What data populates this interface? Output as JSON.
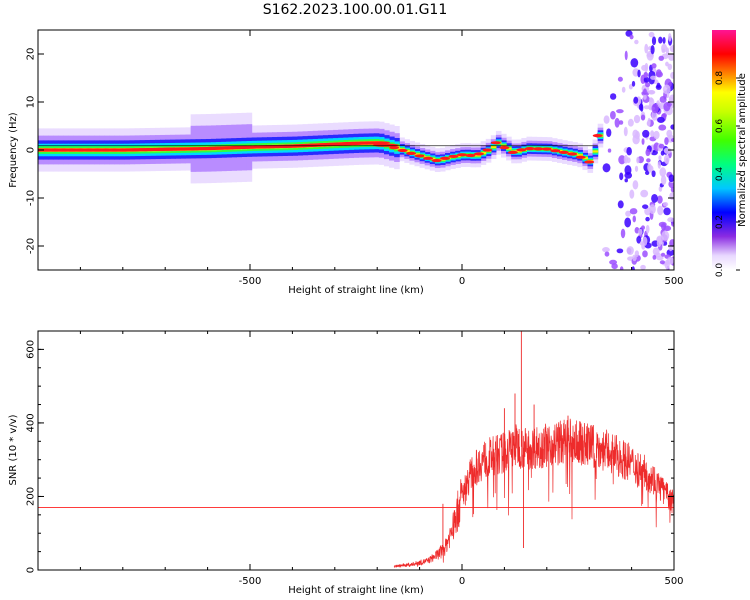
{
  "title": "S162.2023.100.00.01.G11",
  "chart_data": [
    {
      "type": "heatmap",
      "xlabel": "Height of straight line (km)",
      "ylabel": "Frequency (Hz)",
      "xlim": [
        -1000,
        500
      ],
      "ylim": [
        -25,
        25
      ],
      "xticks": [
        -500,
        0,
        500
      ],
      "yticks": [
        -20,
        -10,
        0,
        10,
        20
      ],
      "colorbar": {
        "label": "Normalized spectral amplitude",
        "range": [
          0,
          1
        ],
        "ticks": [
          0.0,
          0.2,
          0.4,
          0.6,
          0.8
        ]
      },
      "ridge": {
        "x": [
          -1000,
          -800,
          -600,
          -500,
          -400,
          -300,
          -250,
          -200,
          -160,
          -120,
          -90,
          -60,
          -30,
          0,
          30,
          60,
          80,
          100,
          120,
          150,
          200,
          240,
          270,
          300,
          320,
          350,
          400,
          450,
          500
        ],
        "y": [
          0,
          0,
          0.3,
          0.6,
          0.8,
          1.2,
          1.4,
          1.5,
          0.5,
          -0.7,
          -1.5,
          -2.2,
          -1.5,
          -1.0,
          -1.2,
          0.0,
          1.5,
          0.5,
          -0.5,
          0.3,
          0.2,
          -0.5,
          -1.0,
          -2.5,
          3.0,
          0,
          0,
          0,
          0
        ]
      }
    },
    {
      "type": "line",
      "xlabel": "Height of straight line (km)",
      "ylabel": "SNR (10 * v/v)",
      "xlim": [
        -1000,
        500
      ],
      "ylim": [
        0,
        650
      ],
      "xticks": [
        -500,
        0,
        500
      ],
      "yticks": [
        0,
        200,
        400,
        600
      ],
      "threshold": 170,
      "envelope": {
        "x": [
          -160,
          -120,
          -80,
          -60,
          -40,
          -20,
          0,
          20,
          50,
          100,
          130,
          150,
          200,
          250,
          300,
          350,
          400,
          450,
          500
        ],
        "y": [
          10,
          15,
          25,
          40,
          60,
          120,
          200,
          260,
          300,
          320,
          340,
          330,
          340,
          350,
          340,
          320,
          290,
          250,
          180
        ]
      },
      "spikes": [
        {
          "x": -45,
          "y": 180
        },
        {
          "x": -10,
          "y": 190
        },
        {
          "x": 100,
          "y": 440
        },
        {
          "x": 125,
          "y": 480
        },
        {
          "x": 140,
          "y": 650
        },
        {
          "x": 145,
          "y": 60
        },
        {
          "x": 170,
          "y": 450
        },
        {
          "x": 250,
          "y": 420
        }
      ]
    }
  ]
}
